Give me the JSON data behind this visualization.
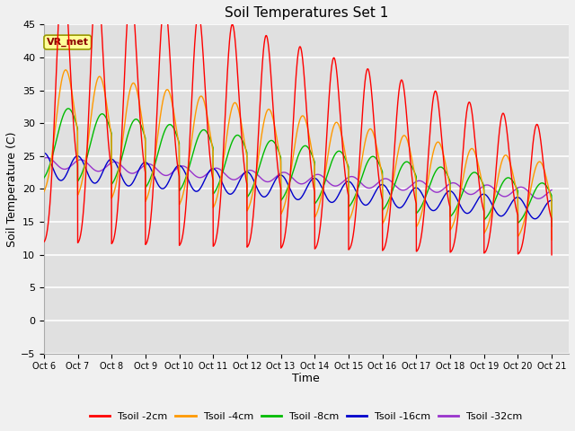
{
  "title": "Soil Temperatures Set 1",
  "xlabel": "Time",
  "ylabel": "Soil Temperature (C)",
  "ylim": [
    -5,
    45
  ],
  "annotation": "VR_met",
  "fig_bg_color": "#f0f0f0",
  "plot_bg_color": "#e0e0e0",
  "legend_labels": [
    "Tsoil -2cm",
    "Tsoil -4cm",
    "Tsoil -8cm",
    "Tsoil -16cm",
    "Tsoil -32cm"
  ],
  "line_colors": [
    "#ff0000",
    "#ff9900",
    "#00bb00",
    "#0000cc",
    "#9933cc"
  ],
  "xtick_labels": [
    "Oct 6",
    "Oct 7",
    "Oct 8",
    "Oct 9",
    "Oct 10",
    "Oct 11",
    "Oct 12",
    "Oct 13",
    "Oct 14",
    "Oct 15",
    "Oct 16",
    "Oct 17",
    "Oct 18",
    "Oct 19",
    "Oct 20",
    "Oct 21"
  ],
  "ytick_vals": [
    -5,
    0,
    5,
    10,
    15,
    20,
    25,
    30,
    35,
    40,
    45
  ]
}
